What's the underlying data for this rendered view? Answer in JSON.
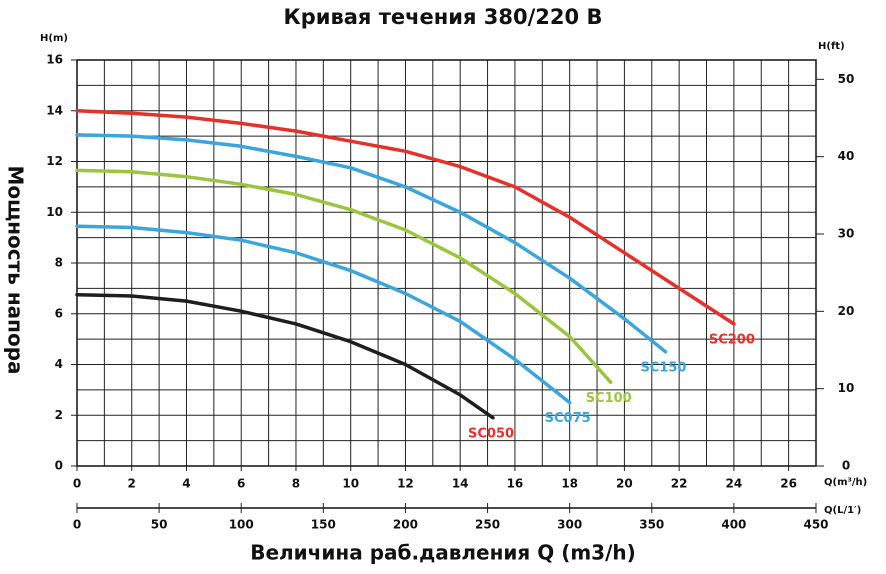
{
  "chart_data": {
    "type": "line",
    "title": "Кривая течения 380/220 В",
    "y_label": "Мощность напора",
    "x_label": "Величина раб.давления Q (m3/h)",
    "y_unit": "H(m)",
    "y2_unit": "H(ft)",
    "x_unit": "Q(m³/h)",
    "x2_unit": "Q(L/1′)",
    "xlim": [
      0,
      27
    ],
    "xticks": [
      0,
      2,
      4,
      6,
      8,
      10,
      12,
      14,
      16,
      18,
      20,
      22,
      24,
      26
    ],
    "ylim": [
      0,
      16
    ],
    "yticks": [
      0,
      2,
      4,
      6,
      8,
      10,
      12,
      14,
      16
    ],
    "y2lim": [
      0,
      52.5
    ],
    "y2ticks": [
      0,
      10,
      20,
      30,
      40,
      50
    ],
    "x2lim": [
      0,
      450
    ],
    "x2ticks": [
      0,
      50,
      100,
      150,
      200,
      250,
      300,
      350,
      400,
      450
    ],
    "grid": true,
    "x_grid_step": 1,
    "y_grid_step": 1,
    "series": [
      {
        "name": "SC050",
        "color": "#1e1e1e",
        "label_color": "#e8302a",
        "x": [
          0,
          2,
          4,
          6,
          8,
          10,
          12,
          14,
          15.2
        ],
        "values": [
          6.75,
          6.7,
          6.5,
          6.1,
          5.6,
          4.9,
          4.0,
          2.8,
          1.9
        ]
      },
      {
        "name": "SC075",
        "color": "#3aa6dd",
        "label_color": "#3aa6dd",
        "x": [
          0,
          2,
          4,
          6,
          8,
          10,
          12,
          14,
          16,
          18
        ],
        "values": [
          9.45,
          9.4,
          9.2,
          8.9,
          8.4,
          7.7,
          6.8,
          5.7,
          4.2,
          2.5
        ]
      },
      {
        "name": "SC100",
        "color": "#9bc53d",
        "label_color": "#9bc53d",
        "x": [
          0,
          2,
          4,
          6,
          8,
          10,
          12,
          14,
          16,
          18,
          19.5
        ],
        "values": [
          11.65,
          11.6,
          11.4,
          11.1,
          10.7,
          10.1,
          9.3,
          8.2,
          6.8,
          5.1,
          3.3
        ]
      },
      {
        "name": "SC150",
        "color": "#3aa6dd",
        "label_color": "#3aa6dd",
        "x": [
          0,
          2,
          4,
          6,
          8,
          10,
          12,
          14,
          16,
          18,
          20,
          21.5
        ],
        "values": [
          13.05,
          13.0,
          12.85,
          12.6,
          12.2,
          11.75,
          11.0,
          10.0,
          8.8,
          7.4,
          5.8,
          4.5
        ]
      },
      {
        "name": "SC200",
        "color": "#e8302a",
        "label_color": "#e8302a",
        "x": [
          0,
          2,
          4,
          6,
          8,
          10,
          12,
          14,
          16,
          18,
          20,
          22,
          24
        ],
        "values": [
          14.0,
          13.9,
          13.75,
          13.5,
          13.2,
          12.8,
          12.4,
          11.8,
          11.0,
          9.8,
          8.4,
          7.0,
          5.6
        ]
      }
    ]
  }
}
